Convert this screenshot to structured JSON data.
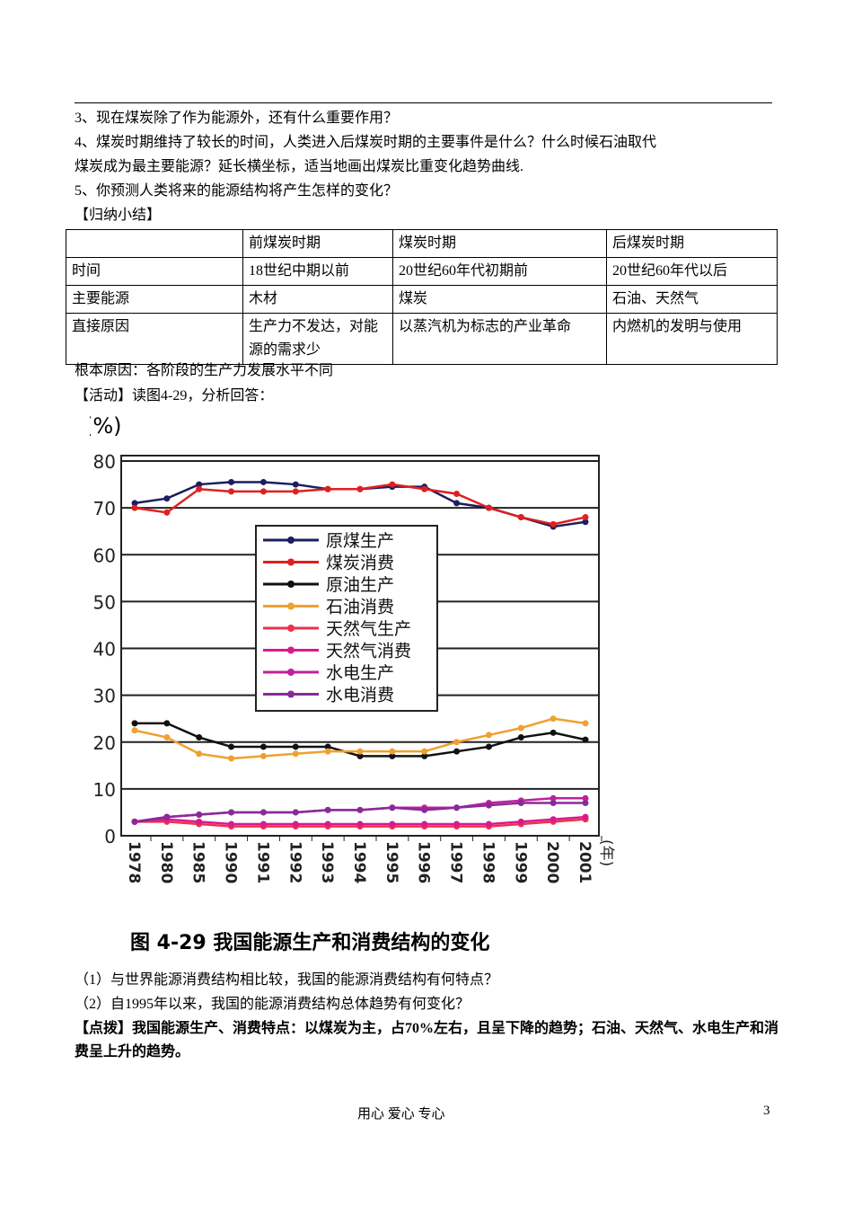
{
  "questions_top": [
    "3、现在煤炭除了作为能源外，还有什么重要作用？",
    "4、煤炭时期维持了较长的时间，人类进入后煤炭时期的主要事件是什么？什么时候石油取代",
    "煤炭成为最主要能源？延长横坐标，适当地画出煤炭比重变化趋势曲线.",
    "5、你预测人类将来的能源结构将产生怎样的变化？"
  ],
  "summary_heading": "【归纳小结】",
  "table": {
    "header": [
      "前煤炭时期",
      "煤炭时期",
      "后煤炭时期"
    ],
    "rows": [
      [
        "时间",
        "18世纪中期以前",
        "20世纪60年代初期前",
        "20世纪60年代以后"
      ],
      [
        "主要能源",
        "木材",
        "煤炭",
        "石油、天然气"
      ],
      [
        "直接原因",
        "生产力不发达，对能源的需求少",
        "以蒸汽机为标志的产业革命",
        "内燃机的发明与使用"
      ]
    ]
  },
  "root_cause": "根本原因：各阶段的生产力发展水平不同",
  "activity_heading": "【活动】读图4-29，分析回答：",
  "chart_data": {
    "type": "line",
    "title": "图 4-29   我国能源生产和消费结构的变化",
    "y_label": "(%)",
    "x_label": "(年)",
    "categories": [
      "1978",
      "1980",
      "1985",
      "1990",
      "1991",
      "1992",
      "1993",
      "1994",
      "1995",
      "1996",
      "1997",
      "1998",
      "1999",
      "2000",
      "2001"
    ],
    "ylim": [
      0,
      80
    ],
    "yticks": [
      0,
      10,
      20,
      30,
      40,
      50,
      60,
      70,
      80
    ],
    "grid": true,
    "series": [
      {
        "name": "原煤生产",
        "color": "#1a1f5e",
        "values": [
          71,
          72,
          75,
          75.5,
          75.5,
          75,
          74,
          74,
          74.5,
          74.5,
          71,
          70,
          68,
          66,
          67
        ]
      },
      {
        "name": "煤炭消费",
        "color": "#e02020",
        "values": [
          70,
          69,
          74,
          73.5,
          73.5,
          73.5,
          74,
          74,
          75,
          74,
          73,
          70,
          68,
          66.5,
          68
        ]
      },
      {
        "name": "原油生产",
        "color": "#111111",
        "values": [
          24,
          24,
          21,
          19,
          19,
          19,
          19,
          17,
          17,
          17,
          18,
          19,
          21,
          22,
          20.5
        ]
      },
      {
        "name": "石油消费",
        "color": "#f0a030",
        "values": [
          22.5,
          21,
          17.5,
          16.5,
          17,
          17.5,
          18,
          18,
          18,
          18,
          20,
          21.5,
          23,
          25,
          24
        ]
      },
      {
        "name": "天然气生产",
        "color": "#f03050",
        "values": [
          3,
          3,
          2.5,
          2,
          2,
          2,
          2,
          2,
          2,
          2,
          2,
          2,
          2.5,
          3,
          3.5
        ]
      },
      {
        "name": "天然气消费",
        "color": "#d81b8c",
        "values": [
          3,
          3.5,
          3,
          2.5,
          2.5,
          2.5,
          2.5,
          2.5,
          2.5,
          2.5,
          2.5,
          2.5,
          3,
          3.5,
          4
        ]
      },
      {
        "name": "水电生产",
        "color": "#c0209c",
        "values": [
          3,
          4,
          4.5,
          5,
          5,
          5,
          5.5,
          5.5,
          6,
          6,
          6,
          7,
          7.5,
          8,
          8
        ]
      },
      {
        "name": "水电消费",
        "color": "#8a2a9a",
        "values": [
          3,
          4,
          4.5,
          5,
          5,
          5,
          5.5,
          5.5,
          6,
          5.5,
          6,
          6.5,
          7,
          7,
          7
        ]
      }
    ]
  },
  "questions_bottom": [
    "（1）与世界能源消费结构相比较，我国的能源消费结构有何特点？",
    "（2）自1995年以来，我国的能源消费结构总体趋势有何变化？"
  ],
  "tip": {
    "label": "【点拨】",
    "text": "我国能源生产、消费特点：以煤炭为主，占70%左右，且呈下降的趋势；石油、天然气、水电生产和消费呈上升的趋势。"
  },
  "footer": {
    "slogan": "用心 爱心 专心",
    "page": 3
  }
}
